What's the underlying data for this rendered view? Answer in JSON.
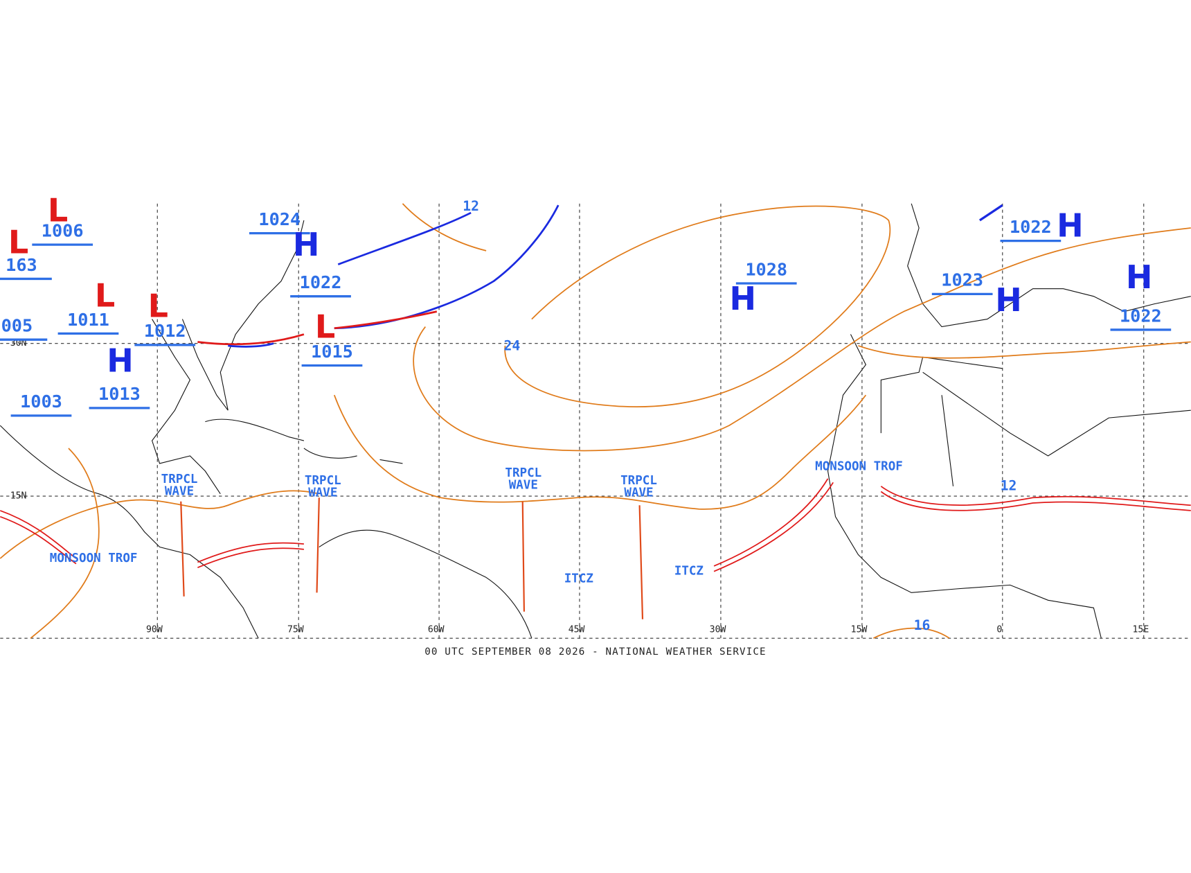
{
  "map": {
    "footer": "00 UTC SEPTEMBER 08 2026 - NATIONAL WEATHER SERVICE",
    "longitude_labels": [
      "90W",
      "75W",
      "60W",
      "45W",
      "30W",
      "15W",
      "0",
      "15E"
    ],
    "latitude_labels": [
      "30N",
      "15N"
    ],
    "pressure_labels": [
      1006,
      1024,
      1022,
      1011,
      1012,
      1015,
      1013,
      1003,
      "005",
      163,
      1028,
      1023,
      1022,
      1022
    ],
    "center_symbols": [
      "L",
      "H",
      "L",
      "H",
      "L",
      "L",
      "H",
      "H",
      "H",
      "H",
      "L"
    ],
    "isobar_labels": [
      24,
      12,
      16,
      12
    ],
    "features": [
      "TRPCL\nWAVE",
      "TRPCL\nWAVE",
      "TRPCL\nWAVE",
      "TRPCL\nWAVE",
      "MONSOON TROF",
      "MONSOON TROF",
      "ITCZ",
      "ITCZ"
    ]
  }
}
